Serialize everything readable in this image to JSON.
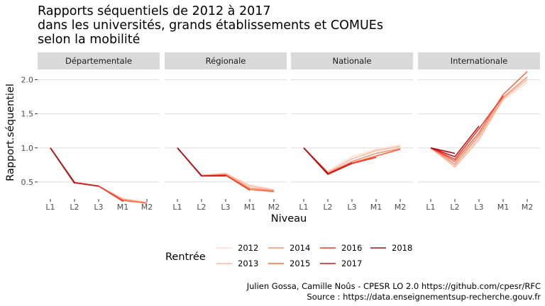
{
  "chart_data": {
    "type": "line",
    "title": [
      "Rapports séquentiels de 2012 à 2017",
      "dans les universités, grands établissements et COMUEs",
      "selon la mobilité"
    ],
    "xlabel": "Niveau",
    "ylabel": "Rapport.séquentiel",
    "ylim": [
      0.25,
      2.15
    ],
    "yticks": [
      0.5,
      1.0,
      1.5,
      2.0
    ],
    "yticklabels": [
      "0.5",
      "1.0",
      "1.5",
      "2.0"
    ],
    "categories": [
      "L1",
      "L2",
      "L3",
      "M1",
      "M2"
    ],
    "grid": true,
    "legend": {
      "title": "Rentrée",
      "position": "bottom",
      "entries": [
        "2012",
        "2013",
        "2014",
        "2015",
        "2016",
        "2017",
        "2018"
      ]
    },
    "colors": {
      "2012": "#fee0d2",
      "2013": "#fcbba1",
      "2014": "#fc9272",
      "2015": "#fb6a4a",
      "2016": "#ef3b2c",
      "2017": "#cb181d",
      "2018": "#a50f15"
    },
    "panels": [
      {
        "name": "Départementale",
        "series": [
          {
            "name": "2012",
            "values": [
              1.0,
              0.5,
              0.44,
              0.26,
              0.2
            ]
          },
          {
            "name": "2013",
            "values": [
              1.0,
              0.5,
              0.44,
              0.25,
              0.2
            ]
          },
          {
            "name": "2014",
            "values": [
              1.0,
              0.49,
              0.44,
              0.24,
              0.19
            ]
          },
          {
            "name": "2015",
            "values": [
              1.0,
              0.49,
              0.44,
              0.23,
              0.19
            ]
          },
          {
            "name": "2016",
            "values": [
              1.0,
              0.49,
              0.44,
              0.22,
              null
            ]
          },
          {
            "name": "2017",
            "values": [
              1.0,
              0.49,
              0.44,
              null,
              null
            ]
          },
          {
            "name": "2018",
            "values": [
              1.0,
              0.48,
              null,
              null,
              null
            ]
          }
        ]
      },
      {
        "name": "Régionale",
        "series": [
          {
            "name": "2012",
            "values": [
              1.0,
              0.6,
              0.63,
              0.46,
              0.39
            ]
          },
          {
            "name": "2013",
            "values": [
              1.0,
              0.6,
              0.62,
              0.44,
              0.38
            ]
          },
          {
            "name": "2014",
            "values": [
              1.0,
              0.59,
              0.61,
              0.41,
              0.37
            ]
          },
          {
            "name": "2015",
            "values": [
              1.0,
              0.59,
              0.6,
              0.39,
              0.36
            ]
          },
          {
            "name": "2016",
            "values": [
              1.0,
              0.59,
              0.6,
              0.38,
              null
            ]
          },
          {
            "name": "2017",
            "values": [
              1.0,
              0.59,
              0.59,
              null,
              null
            ]
          },
          {
            "name": "2018",
            "values": [
              1.0,
              0.59,
              null,
              null,
              null
            ]
          }
        ]
      },
      {
        "name": "Nationale",
        "series": [
          {
            "name": "2012",
            "values": [
              1.0,
              0.66,
              0.87,
              0.98,
              1.04
            ]
          },
          {
            "name": "2013",
            "values": [
              1.0,
              0.64,
              0.84,
              0.96,
              1.02
            ]
          },
          {
            "name": "2014",
            "values": [
              1.0,
              0.63,
              0.8,
              0.92,
              0.99
            ]
          },
          {
            "name": "2015",
            "values": [
              1.0,
              0.62,
              0.78,
              0.88,
              0.98
            ]
          },
          {
            "name": "2016",
            "values": [
              1.0,
              0.61,
              0.77,
              0.86,
              null
            ]
          },
          {
            "name": "2017",
            "values": [
              1.0,
              0.62,
              0.78,
              null,
              null
            ]
          },
          {
            "name": "2018",
            "values": [
              1.0,
              0.63,
              null,
              null,
              null
            ]
          }
        ]
      },
      {
        "name": "Internationale",
        "series": [
          {
            "name": "2012",
            "values": [
              1.0,
              0.74,
              1.15,
              1.7,
              1.96
            ]
          },
          {
            "name": "2013",
            "values": [
              1.0,
              0.72,
              1.12,
              1.72,
              2.0
            ]
          },
          {
            "name": "2014",
            "values": [
              1.0,
              0.76,
              1.18,
              1.74,
              2.04
            ]
          },
          {
            "name": "2015",
            "values": [
              1.0,
              0.8,
              1.22,
              1.78,
              2.12
            ]
          },
          {
            "name": "2016",
            "values": [
              1.0,
              0.83,
              1.28,
              1.76,
              null
            ]
          },
          {
            "name": "2017",
            "values": [
              1.0,
              0.87,
              1.32,
              null,
              null
            ]
          },
          {
            "name": "2018",
            "values": [
              1.0,
              0.92,
              null,
              null,
              null
            ]
          }
        ]
      }
    ],
    "caption": [
      "Julien Gossa, Camille Noûs - CPESR LO 2.0 https://github.com/cpesr/RFC",
      "Source : https://data.enseignementsup-recherche.gouv.fr"
    ]
  }
}
